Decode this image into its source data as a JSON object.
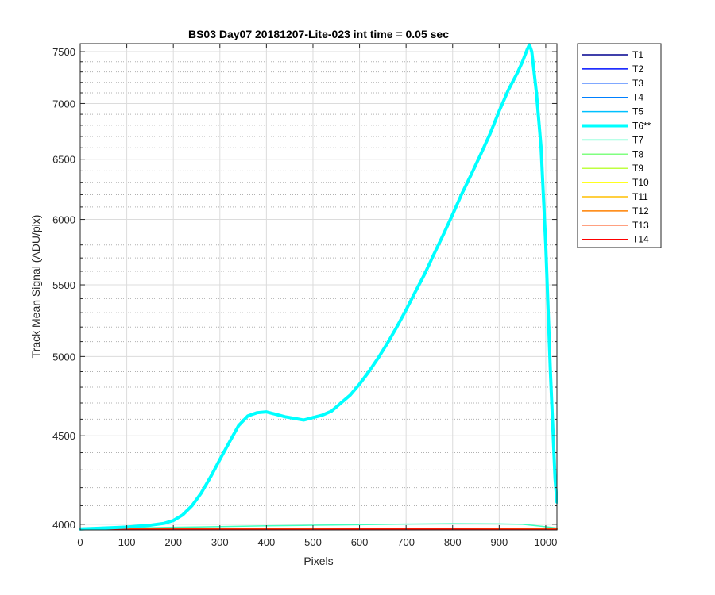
{
  "chart_data": {
    "type": "line",
    "title": "BS03 Day07 20181207-Lite-023 int time = 0.05 sec",
    "xlabel": "Pixels",
    "ylabel": "Track Mean Signal (ADU/pix)",
    "xlim": [
      0,
      1024
    ],
    "ylim": [
      3970,
      7580
    ],
    "yscale": "log",
    "x_ticks": [
      0,
      100,
      200,
      300,
      400,
      500,
      600,
      700,
      800,
      900,
      1000
    ],
    "y_ticks": [
      4000,
      4500,
      5000,
      5500,
      6000,
      6500,
      7000,
      7500
    ],
    "y_minor_ticks": [
      4100,
      4200,
      4300,
      4400,
      4600,
      4700,
      4800,
      4900,
      5100,
      5200,
      5300,
      5400,
      5600,
      5700,
      5800,
      5900,
      6100,
      6200,
      6300,
      6400,
      6600,
      6700,
      6800,
      6900,
      7100,
      7200,
      7300,
      7400
    ],
    "grid": true,
    "minor_grid": true,
    "legend_position": "outside-right",
    "series": [
      {
        "name": "T1",
        "color": "#00008f",
        "width": 1.5,
        "x": [
          0,
          1024
        ],
        "y": [
          3975,
          3975
        ]
      },
      {
        "name": "T2",
        "color": "#0010ff",
        "width": 1.5,
        "x": [
          0,
          1024
        ],
        "y": [
          3975,
          3975
        ]
      },
      {
        "name": "T3",
        "color": "#0050ff",
        "width": 1.5,
        "x": [
          0,
          1024
        ],
        "y": [
          3976,
          3976
        ]
      },
      {
        "name": "T4",
        "color": "#0080ff",
        "width": 1.5,
        "x": [
          0,
          1024
        ],
        "y": [
          3976,
          3976
        ]
      },
      {
        "name": "T5",
        "color": "#00c0ff",
        "width": 1.5,
        "x": [
          0,
          1024
        ],
        "y": [
          3977,
          3977
        ]
      },
      {
        "name": "T6**",
        "color": "#00ffff",
        "width": 4,
        "x": [
          0,
          50,
          100,
          150,
          180,
          200,
          220,
          240,
          260,
          280,
          300,
          320,
          340,
          360,
          380,
          400,
          420,
          440,
          460,
          480,
          500,
          520,
          540,
          560,
          580,
          600,
          620,
          640,
          660,
          680,
          700,
          720,
          740,
          760,
          780,
          800,
          820,
          840,
          860,
          880,
          900,
          920,
          940,
          950,
          960,
          965,
          970,
          980,
          990,
          1000,
          1010,
          1020,
          1024
        ],
        "y": [
          3975,
          3980,
          3985,
          3995,
          4005,
          4020,
          4050,
          4100,
          4170,
          4260,
          4360,
          4460,
          4560,
          4620,
          4640,
          4645,
          4630,
          4615,
          4605,
          4595,
          4610,
          4625,
          4650,
          4700,
          4750,
          4820,
          4900,
          4990,
          5090,
          5200,
          5320,
          5450,
          5580,
          5730,
          5880,
          6040,
          6210,
          6370,
          6540,
          6720,
          6930,
          7130,
          7300,
          7400,
          7520,
          7570,
          7500,
          7100,
          6600,
          5800,
          4900,
          4250,
          4120
        ]
      },
      {
        "name": "T7",
        "color": "#40ffbf",
        "width": 1.5,
        "x": [
          0,
          100,
          200,
          300,
          400,
          500,
          600,
          700,
          800,
          900,
          950,
          990,
          1024
        ],
        "y": [
          3978,
          3980,
          3984,
          3988,
          3992,
          3995,
          3998,
          4001,
          4003,
          4002,
          4000,
          3990,
          3980
        ]
      },
      {
        "name": "T8",
        "color": "#80ff80",
        "width": 1.5,
        "x": [
          0,
          1024
        ],
        "y": [
          3977,
          3977
        ]
      },
      {
        "name": "T9",
        "color": "#bfff40",
        "width": 1.5,
        "x": [
          0,
          1024
        ],
        "y": [
          3976,
          3976
        ]
      },
      {
        "name": "T10",
        "color": "#ffff00",
        "width": 1.5,
        "x": [
          0,
          1024
        ],
        "y": [
          3976,
          3976
        ]
      },
      {
        "name": "T11",
        "color": "#ffbf00",
        "width": 1.5,
        "x": [
          0,
          1024
        ],
        "y": [
          3975,
          3975
        ]
      },
      {
        "name": "T12",
        "color": "#ff8000",
        "width": 1.5,
        "x": [
          0,
          1024
        ],
        "y": [
          3975,
          3975
        ]
      },
      {
        "name": "T13",
        "color": "#ff4000",
        "width": 1.5,
        "x": [
          0,
          1024
        ],
        "y": [
          3974,
          3974
        ]
      },
      {
        "name": "T14",
        "color": "#ff0000",
        "width": 1.5,
        "x": [
          0,
          100,
          200,
          300,
          400,
          500,
          600,
          700,
          800,
          900,
          1000,
          1024
        ],
        "y": [
          3972,
          3972,
          3973,
          3973,
          3973,
          3973,
          3974,
          3974,
          3974,
          3973,
          3972,
          3972
        ]
      }
    ]
  }
}
